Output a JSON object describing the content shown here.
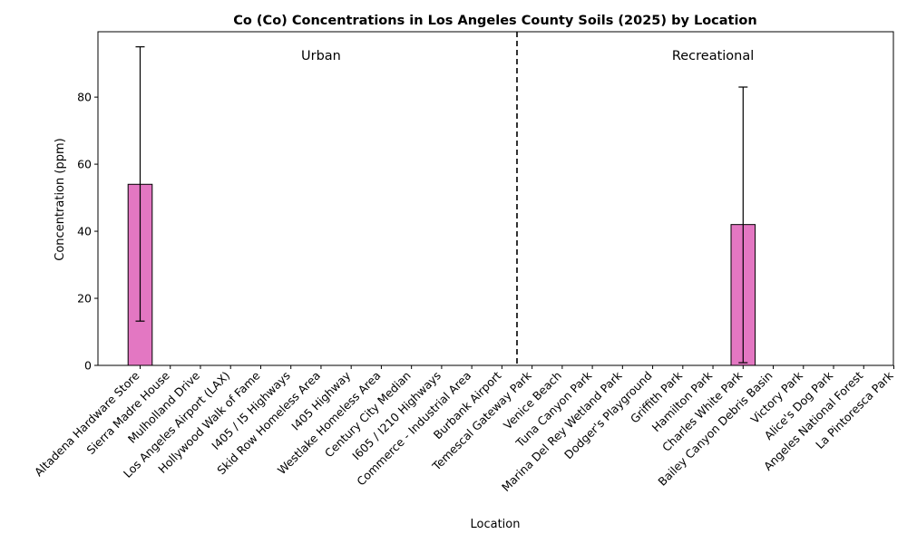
{
  "chart_data": {
    "type": "bar",
    "title": "Co (Co) Concentrations in Los Angeles County Soils (2025) by Location",
    "xlabel": "Location",
    "ylabel": "Concentration (ppm)",
    "ylim": [
      0,
      99.5
    ],
    "yticks": [
      0,
      20,
      40,
      60,
      80
    ],
    "grid": false,
    "bar_color": "#e377c2",
    "categories": [
      "Altadena Hardware Store",
      "Sierra Madre House",
      "Mulholland Drive",
      "Los Angeles Airport (LAX)",
      "Hollywood Walk of Fame",
      "I405 / I5 Highways",
      "Skid Row Homeless Area",
      "I405 Highway",
      "Westlake Homeless Area",
      "Century City Median",
      "I605 / I210 Highways",
      "Commerce - Industrial Area",
      "Burbank Airport",
      "Temescal Gateway Park",
      "Venice Beach",
      "Tuna Canyon Park",
      "Marina Del Rey Wetland Park",
      "Dodger's Playground",
      "Griffith Park",
      "Hamilton Park",
      "Charles White Park",
      "Bailey Canyon Debris Basin",
      "Victory Park",
      "Alice's Dog Park",
      "Angeles National Forest",
      "La Pintoresca Park"
    ],
    "values": [
      54,
      0,
      0,
      0,
      0,
      0,
      0,
      0,
      0,
      0,
      0,
      0,
      0,
      0,
      0,
      0,
      0,
      0,
      0,
      0,
      42,
      0,
      0,
      0,
      0,
      0
    ],
    "error_low": [
      13.2,
      null,
      null,
      null,
      null,
      null,
      null,
      null,
      null,
      null,
      null,
      null,
      null,
      null,
      null,
      null,
      null,
      null,
      null,
      null,
      0.8,
      null,
      null,
      null,
      null,
      null
    ],
    "error_high": [
      95,
      null,
      null,
      null,
      null,
      null,
      null,
      null,
      null,
      null,
      null,
      null,
      null,
      null,
      null,
      null,
      null,
      null,
      null,
      null,
      83,
      null,
      null,
      null,
      null,
      null
    ],
    "group_divider_after_index": 12.5,
    "group_labels": [
      {
        "text": "Urban",
        "center_index": 6
      },
      {
        "text": "Recreational",
        "center_index": 19
      }
    ]
  }
}
